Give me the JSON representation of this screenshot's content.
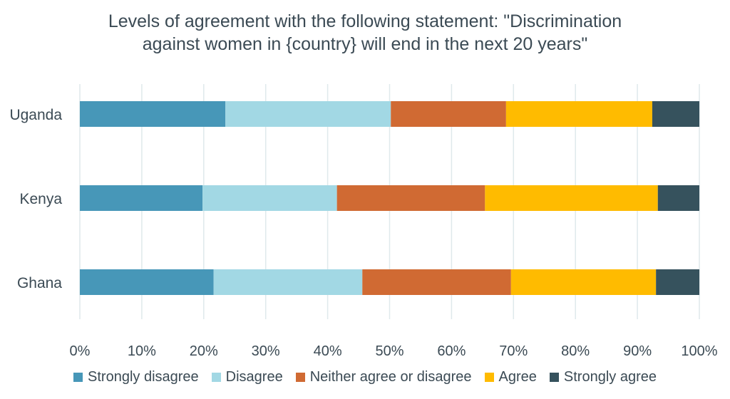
{
  "chart_data": {
    "type": "bar",
    "orientation": "horizontal",
    "stacked": true,
    "title_line1": "Levels of agreement with the following statement: \"Discrimination",
    "title_line2": "against women in {country} will end in the next 20 years\"",
    "categories": [
      "Uganda",
      "Kenya",
      "Ghana"
    ],
    "series": [
      {
        "name": "Strongly disagree",
        "color": "#4797b8",
        "values": [
          23.5,
          19.8,
          21.6
        ]
      },
      {
        "name": "Disagree",
        "color": "#a2d8e4",
        "values": [
          26.7,
          21.7,
          24.0
        ]
      },
      {
        "name": "Neither agree or disagree",
        "color": "#d06a33",
        "values": [
          18.6,
          23.9,
          24.0
        ]
      },
      {
        "name": "Agree",
        "color": "#ffbb00",
        "values": [
          23.6,
          27.9,
          23.4
        ]
      },
      {
        "name": "Strongly agree",
        "color": "#36525d",
        "values": [
          7.6,
          6.7,
          7.0
        ]
      }
    ],
    "x_ticks": [
      "0%",
      "10%",
      "20%",
      "30%",
      "40%",
      "50%",
      "60%",
      "70%",
      "80%",
      "90%",
      "100%"
    ],
    "xlim": [
      0,
      100
    ],
    "grid": "vertical",
    "legend_position": "bottom"
  }
}
